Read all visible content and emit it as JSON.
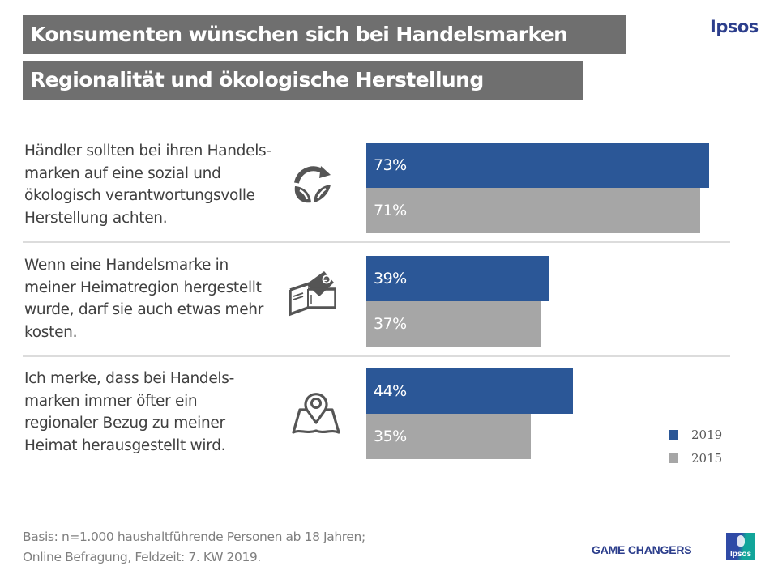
{
  "header": {
    "title_line1": "Konsumenten wünschen sich bei Handelsmarken",
    "title_line2": "Regionalität und ökologische Herstellung",
    "brand": "Ipsos"
  },
  "colors": {
    "series_2019": "#2b5797",
    "series_2015": "#a6a6a6",
    "title_bg": "#6f6f6f",
    "brand_blue": "#2c3e8c"
  },
  "statements": [
    {
      "lines": [
        "Händler sollten bei ihren Handels-",
        "marken auf eine sozial und",
        "ökologisch verantwortungsvolle",
        "Herstellung achten."
      ],
      "icon": "sustainability-leaf-cycle-icon"
    },
    {
      "lines": [
        "Wenn eine Handelsmarke in",
        "meiner Heimatregion hergestellt",
        "wurde, darf sie auch etwas mehr",
        "kosten."
      ],
      "icon": "wallet-euro-icon"
    },
    {
      "lines": [
        "Ich merke, dass bei Handels-",
        "marken immer öfter ein",
        "regionaler Bezug zu meiner",
        "Heimat herausgestellt wird."
      ],
      "icon": "map-pin-icon"
    }
  ],
  "chart_data": {
    "type": "bar",
    "orientation": "horizontal",
    "title": "Konsumenten wünschen sich bei Handelsmarken Regionalität und ökologische Herstellung",
    "categories": [
      "Händler sollten bei ihren Handelsmarken auf eine sozial und ökologisch verantwortungsvolle Herstellung achten.",
      "Wenn eine Handelsmarke in meiner Heimatregion hergestellt wurde, darf sie auch etwas mehr kosten.",
      "Ich merke, dass bei Handelsmarken immer öfter ein regionaler Bezug zu meiner Heimat herausgestellt wird."
    ],
    "series": [
      {
        "name": "2019",
        "values": [
          73,
          39,
          44
        ],
        "labels": [
          "73%",
          "39%",
          "44%"
        ]
      },
      {
        "name": "2015",
        "values": [
          71,
          37,
          35
        ],
        "labels": [
          "71%",
          "37%",
          "35%"
        ]
      }
    ],
    "unit": "%",
    "xlim": [
      0,
      100
    ],
    "grid": false,
    "legend": {
      "position": "bottom-right",
      "entries": [
        "2019",
        "2015"
      ]
    },
    "xlabel": "",
    "ylabel": ""
  },
  "footer": {
    "basis_line1": "Basis: n=1.000 haushaltführende  Personen ab 18 Jahren;",
    "basis_line2": "Online Befragung, Feldzeit: 7. KW 2019.",
    "tagline": "GAME CHANGERS",
    "logo_text": "Ipsos"
  }
}
